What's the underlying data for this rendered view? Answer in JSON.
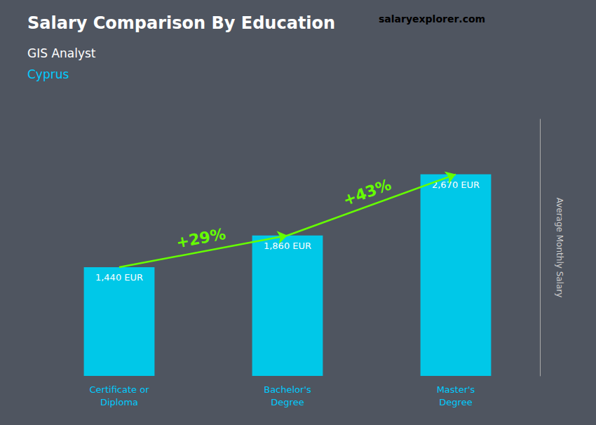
{
  "chart_data": {
    "type": "bar",
    "title": "Salary Comparison By Education",
    "subtitle": [
      "GIS Analyst",
      "Cyprus"
    ],
    "categories": [
      "Certificate or\nDiploma",
      "Bachelor's\nDegree",
      "Master's\nDegree"
    ],
    "values": [
      1440,
      1860,
      2670
    ],
    "value_labels": [
      "1,440 EUR",
      "1,860 EUR",
      "2,670 EUR"
    ],
    "data_labels": true,
    "color": "#00c8e8",
    "ylabel": "Average Monthly Salary",
    "ylim": [
      0,
      3400
    ],
    "tick_labels": "x",
    "grid": false,
    "annotations": [
      {
        "text": "+29%",
        "color": "#66ff00",
        "from": "Certificate or\nDiploma",
        "to": "Bachelor's\nDegree"
      },
      {
        "text": "+43%",
        "color": "#66ff00",
        "from": "Bachelor's\nDegree",
        "to": "Master's\nDegree"
      },
      {
        "parts": [
          {
            "text": "salary",
            "color": "#ffffff"
          },
          {
            "text": "explorer",
            "color": "#00ccff"
          },
          {
            "text": ".com",
            "color": "#ffffff"
          }
        ]
      }
    ]
  }
}
